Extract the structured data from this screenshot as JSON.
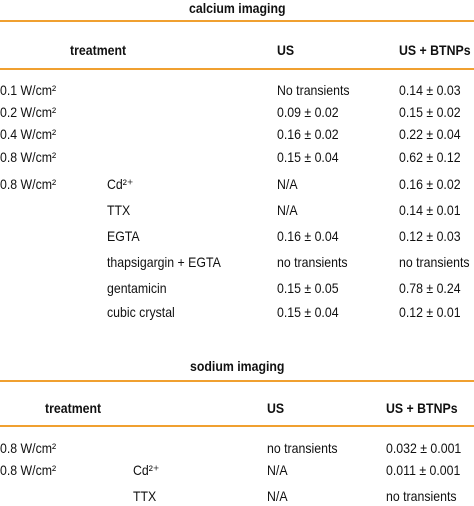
{
  "calcium": {
    "title": "calcium imaging",
    "header": [
      "treatment",
      "US",
      "US + BTNPs"
    ],
    "rows": [
      [
        "0.1 W/cm²",
        null,
        "No transients",
        "0.14 ± 0.03"
      ],
      [
        "0.2 W/cm²",
        null,
        "0.09 ± 0.02",
        "0.15 ± 0.02"
      ],
      [
        "0.4 W/cm²",
        null,
        "0.16 ± 0.02",
        "0.22 ± 0.04"
      ],
      [
        "0.8 W/cm²",
        null,
        "0.15 ± 0.04",
        "0.62 ± 0.12"
      ],
      [
        "0.8 W/cm²",
        "Cd²⁺",
        "N/A",
        "0.16 ± 0.02"
      ],
      [
        null,
        "TTX",
        "N/A",
        "0.14 ± 0.01"
      ],
      [
        null,
        "EGTA",
        "0.16 ± 0.04",
        "0.12 ± 0.03"
      ],
      [
        null,
        "thapsigargin + EGTA",
        "no transients",
        "no transients"
      ],
      [
        null,
        "gentamicin",
        "0.15 ± 0.05",
        "0.78 ± 0.24"
      ],
      [
        null,
        "cubic crystal",
        "0.15 ± 0.04",
        "0.12 ± 0.01"
      ]
    ]
  },
  "sodium": {
    "title": "sodium imaging",
    "header": [
      "treatment",
      "US",
      "US + BTNPs"
    ],
    "rows": [
      [
        "0.8 W/cm²",
        null,
        "no transients",
        "0.032 ± 0.001"
      ],
      [
        "0.8 W/cm²",
        "Cd²⁺",
        "N/A",
        "0.011 ± 0.001"
      ],
      [
        null,
        "TTX",
        "N/A",
        "no transients"
      ]
    ]
  }
}
